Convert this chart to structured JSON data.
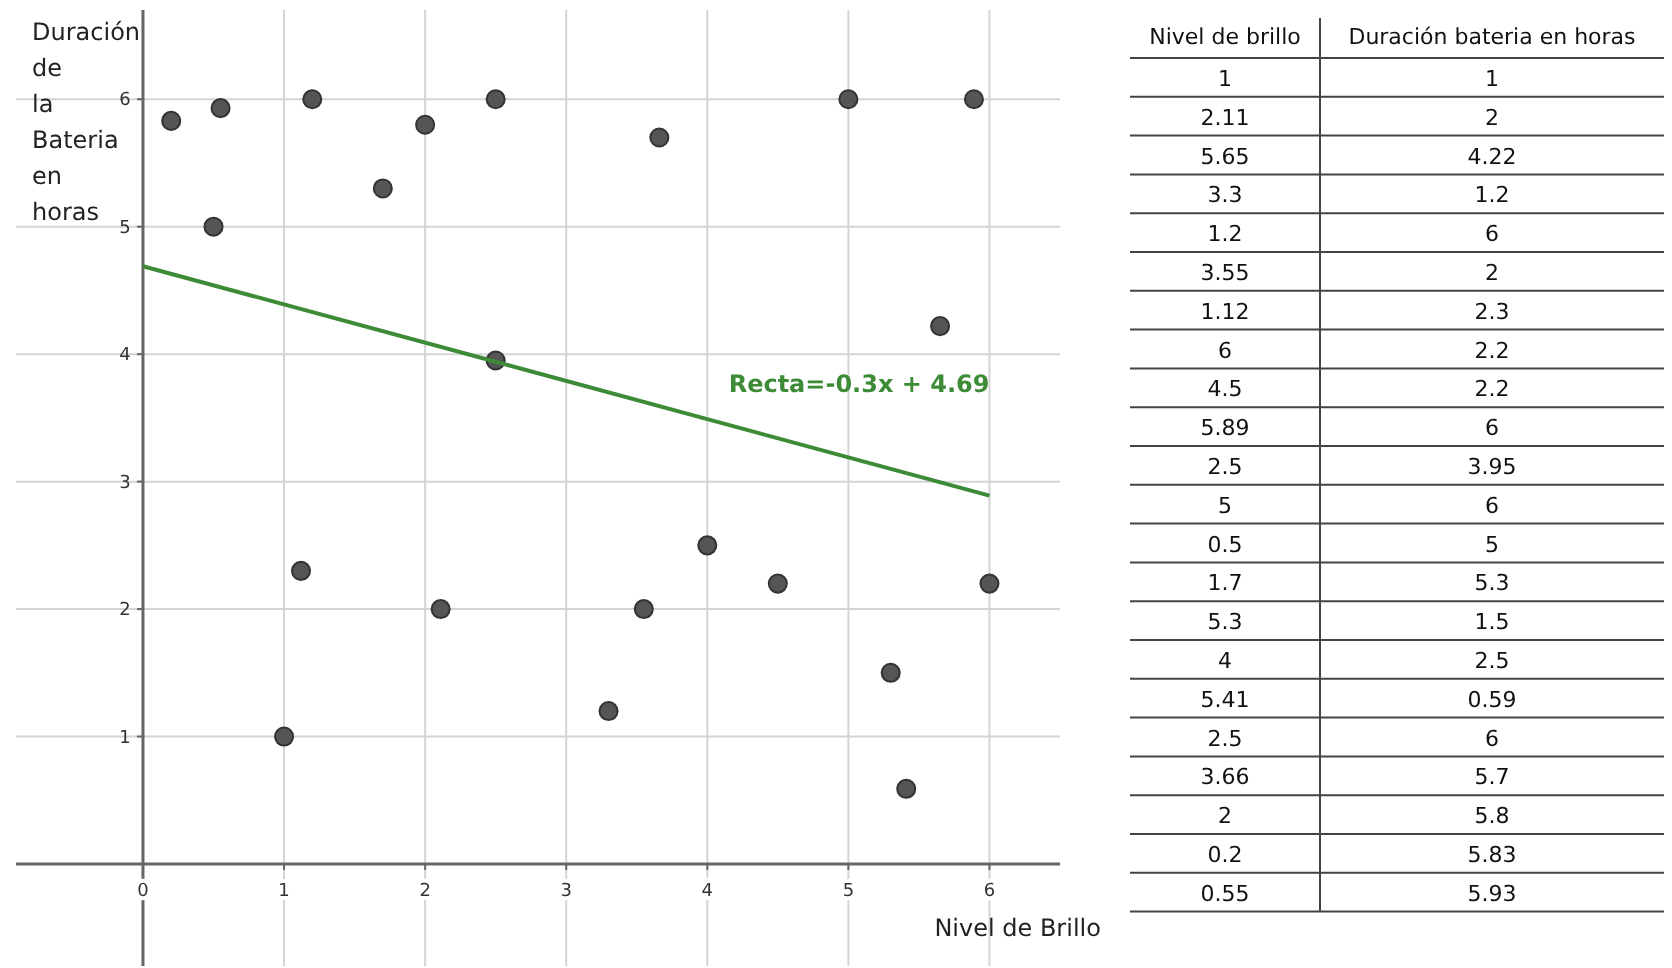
{
  "chart_data": [
    {
      "type": "scatter",
      "xlabel": "Nivel de Brillo",
      "ylabel": "Duración de la Bateria en horas",
      "xlim": [
        -0.9,
        6.5
      ],
      "ylim": [
        -0.8,
        6.7
      ],
      "xticks": [
        0,
        1,
        2,
        3,
        4,
        5,
        6
      ],
      "yticks": [
        {
          "value": 0,
          "label": null
        },
        1,
        2,
        3,
        4,
        5,
        6
      ],
      "grid": true,
      "legend": false,
      "marker": "circle",
      "series": [
        {
          "type": "scatter",
          "color": "#555555",
          "x": [
            1,
            2.11,
            5.65,
            3.3,
            1.2,
            3.55,
            1.12,
            6,
            4.5,
            5.89,
            2.5,
            5,
            0.5,
            1.7,
            5.3,
            4,
            5.41,
            2.5,
            3.66,
            2,
            0.2,
            0.55
          ],
          "values": [
            1,
            2,
            4.22,
            1.2,
            6,
            2,
            2.3,
            2.2,
            2.2,
            6,
            3.95,
            6,
            5,
            5.3,
            1.5,
            2.5,
            0.59,
            6,
            5.7,
            5.8,
            5.83,
            5.93
          ]
        },
        {
          "type": "line",
          "name": "Recta=-0.3x + 4.69",
          "color": "#3d8b37",
          "marker": "none",
          "x": [
            0,
            6
          ],
          "values": [
            4.69,
            2.89
          ]
        }
      ]
    },
    {
      "type": "other",
      "annotations": [
        "Nivel de brillo",
        "Duración bateria en horas",
        "1",
        "1",
        "2.11",
        "2",
        "5.65",
        "4.22",
        "3.3",
        "1.2",
        "1.2",
        "6",
        "3.55",
        "2",
        "1.12",
        "2.3",
        "6",
        "2.2",
        "4.5",
        "2.2",
        "5.89",
        "6",
        "2.5",
        "3.95",
        "5",
        "6",
        "0.5",
        "5",
        "1.7",
        "5.3",
        "5.3",
        "1.5",
        "4",
        "2.5",
        "5.41",
        "0.59",
        "2.5",
        "6",
        "3.66",
        "5.7",
        "2",
        "5.8",
        "0.2",
        "5.83",
        "0.55",
        "5.93"
      ]
    }
  ]
}
